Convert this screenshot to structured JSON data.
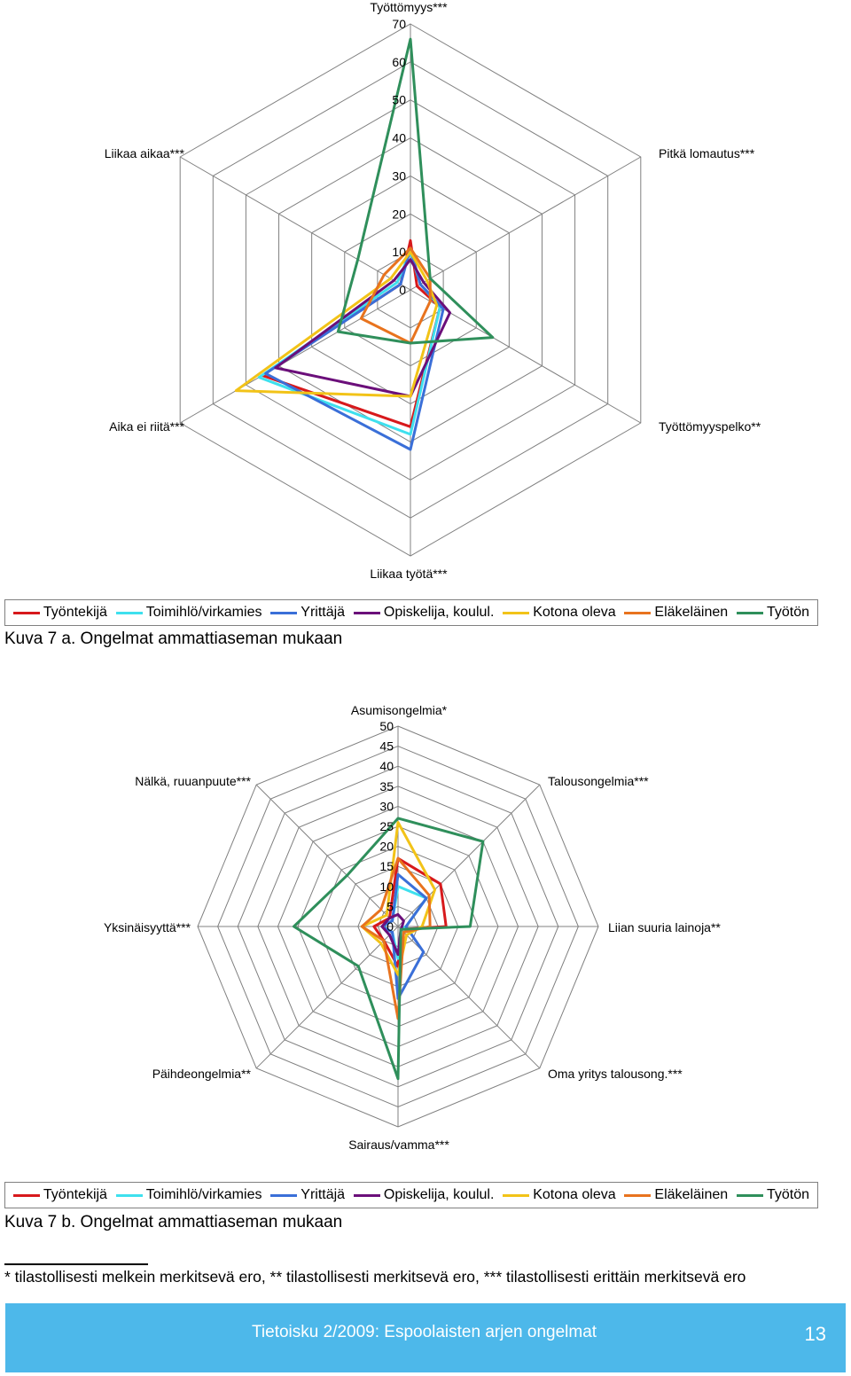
{
  "colors": {
    "Työntekijä": "#d7191c",
    "Toimihlö/virkamies": "#3ee0ee",
    "Yrittäjä": "#3a6fd8",
    "Opiskelija, koulul.": "#6b0f7a",
    "Kotona oleva": "#f2c318",
    "Eläkeläinen": "#e8731e",
    "Työtön": "#2f8f5b",
    "grid": "#808080"
  },
  "chart_data": [
    {
      "type": "radar",
      "axes": [
        "Työttömyys***",
        "Pitkä lomautus***",
        "Työttömyyspelko**",
        "Liikaa työtä***",
        "Aika ei riitä***",
        "Liikaa aikaa***"
      ],
      "ticks": [
        0,
        10,
        20,
        30,
        40,
        50,
        60,
        70
      ],
      "rlim": [
        0,
        70
      ],
      "legend_position": "bottom",
      "series": [
        {
          "name": "Työntekijä",
          "values": [
            13,
            2,
            9,
            36,
            45,
            3
          ]
        },
        {
          "name": "Toimihlö/virkamies",
          "values": [
            10,
            3,
            9,
            38,
            46,
            4
          ]
        },
        {
          "name": "Yrittäjä",
          "values": [
            11,
            3,
            10,
            42,
            44,
            3
          ]
        },
        {
          "name": "Opiskelija, koulul.",
          "values": [
            8,
            4,
            12,
            28,
            41,
            5
          ]
        },
        {
          "name": "Kotona oleva",
          "values": [
            10,
            5,
            8,
            28,
            53,
            6
          ]
        },
        {
          "name": "Eläkeläinen",
          "values": [
            11,
            6,
            6,
            14,
            15,
            8
          ]
        },
        {
          "name": "Työtön",
          "values": [
            66,
            6,
            25,
            14,
            22,
            16
          ]
        }
      ]
    },
    {
      "type": "radar",
      "axes": [
        "Asumisongelmia*",
        "Talousongelmia***",
        "Liian suuria lainoja**",
        "Oma yritys talousong.***",
        "Sairaus/vamma***",
        "Päihdeongelmia**",
        "Yksinäisyyttä***",
        "Nälkä, ruuanpuute***"
      ],
      "ticks": [
        0,
        5,
        10,
        15,
        20,
        25,
        30,
        35,
        40,
        45,
        50
      ],
      "rlim": [
        0,
        50
      ],
      "legend_position": "bottom",
      "series": [
        {
          "name": "Työntekijä",
          "values": [
            17,
            15,
            12,
            1,
            10,
            5,
            6,
            3
          ]
        },
        {
          "name": "Toimihlö/virkamies",
          "values": [
            10,
            10,
            2,
            1,
            8,
            2,
            4,
            2
          ]
        },
        {
          "name": "Yrittäjä",
          "values": [
            13,
            10,
            2,
            9,
            18,
            2,
            4,
            2
          ]
        },
        {
          "name": "Opiskelija, koulul.",
          "values": [
            3,
            2,
            1,
            1,
            7,
            3,
            4,
            3
          ]
        },
        {
          "name": "Kotona oleva",
          "values": [
            26,
            13,
            6,
            3,
            12,
            6,
            9,
            4
          ]
        },
        {
          "name": "Eläkeläinen",
          "values": [
            17,
            11,
            8,
            2,
            23,
            5,
            9,
            6
          ]
        },
        {
          "name": "Työtön",
          "values": [
            27,
            30,
            18,
            1,
            38,
            14,
            26,
            18
          ]
        }
      ]
    }
  ],
  "legend": [
    "Työntekijä",
    "Toimihlö/virkamies",
    "Yrittäjä",
    "Opiskelija, koulul.",
    "Kotona oleva",
    "Eläkeläinen",
    "Työtön"
  ],
  "caption1": "Kuva 7 a. Ongelmat ammattiaseman mukaan",
  "caption2": "Kuva 7 b. Ongelmat ammattiaseman mukaan",
  "footnote": "* tilastollisesti melkein merkitsevä ero, ** tilastollisesti merkitsevä ero, *** tilastollisesti erittäin merkitsevä ero",
  "footer": {
    "publication": "Tietoisku 2/2009: Espoolaisten arjen ongelmat",
    "page_number": "13"
  }
}
